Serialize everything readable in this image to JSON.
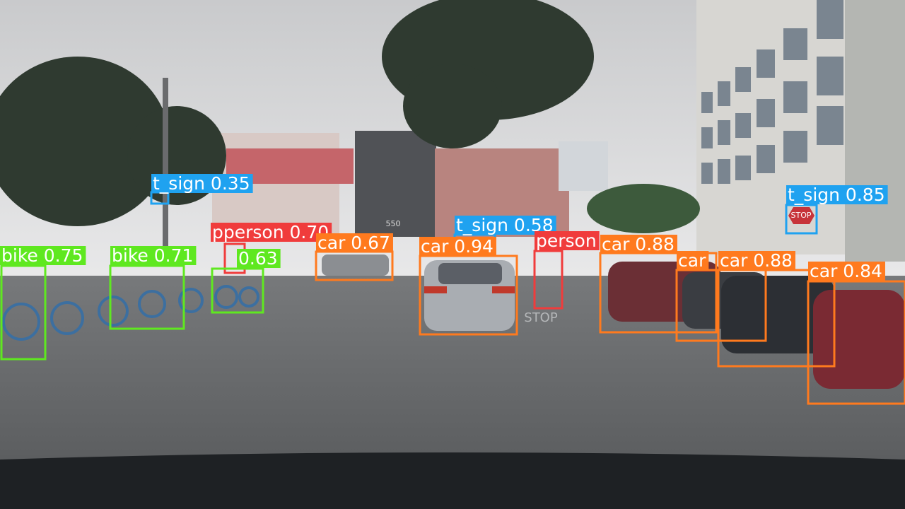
{
  "detections": [
    {
      "label": "t_sign 0.35"
    },
    {
      "label": "pperson 0.70"
    },
    {
      "label": "car 0.67"
    },
    {
      "label": "t_sign 0.58"
    },
    {
      "label": "car 0.94"
    },
    {
      "label": "person"
    },
    {
      "label": "car 0.88"
    },
    {
      "label": "car"
    },
    {
      "label": "car 0.88"
    },
    {
      "label": "car 0.84"
    },
    {
      "label": "t_sign 0.85"
    },
    {
      "label": "bike 0.75"
    },
    {
      "label": "bike 0.71"
    },
    {
      "label": "0.63"
    }
  ],
  "scene_text": {
    "stop_sign": "STOP",
    "building_number": "550",
    "road_marking": "STOP"
  }
}
